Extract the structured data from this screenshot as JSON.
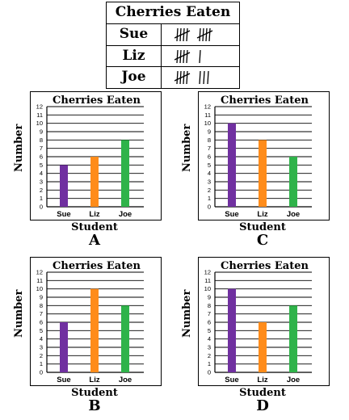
{
  "tally_table": {
    "title": "Cherries Eaten",
    "rows": [
      {
        "name": "Sue",
        "count": 10
      },
      {
        "name": "Liz",
        "count": 6
      },
      {
        "name": "Joe",
        "count": 8
      }
    ]
  },
  "colors": {
    "Sue": "#7030a0",
    "Liz": "#ff8c1a",
    "Joe": "#2fb34a"
  },
  "chart_data": [
    {
      "id": "A",
      "type": "bar",
      "title": "Cherries Eaten",
      "categories": [
        "Sue",
        "Liz",
        "Joe"
      ],
      "values": [
        5,
        6,
        8
      ],
      "xlabel": "Student",
      "ylabel": "Number",
      "ylim": [
        0,
        12
      ],
      "yticks": [
        0,
        1,
        2,
        3,
        4,
        5,
        6,
        7,
        8,
        9,
        10,
        11,
        12
      ],
      "grid": true,
      "letter": "A"
    },
    {
      "id": "C",
      "type": "bar",
      "title": "Cherries Eaten",
      "categories": [
        "Sue",
        "Liz",
        "Joe"
      ],
      "values": [
        10,
        8,
        6
      ],
      "xlabel": "Student",
      "ylabel": "Number",
      "ylim": [
        0,
        12
      ],
      "yticks": [
        0,
        1,
        2,
        3,
        4,
        5,
        6,
        7,
        8,
        9,
        10,
        11,
        12
      ],
      "grid": true,
      "letter": "C"
    },
    {
      "id": "B",
      "type": "bar",
      "title": "Cherries Eaten",
      "categories": [
        "Sue",
        "Liz",
        "Joe"
      ],
      "values": [
        6,
        10,
        8
      ],
      "xlabel": "Student",
      "ylabel": "Number",
      "ylim": [
        0,
        12
      ],
      "yticks": [
        0,
        1,
        2,
        3,
        4,
        5,
        6,
        7,
        8,
        9,
        10,
        11,
        12
      ],
      "grid": true,
      "letter": "B"
    },
    {
      "id": "D",
      "type": "bar",
      "title": "Cherries Eaten",
      "categories": [
        "Sue",
        "Liz",
        "Joe"
      ],
      "values": [
        10,
        6,
        8
      ],
      "xlabel": "Student",
      "ylabel": "Number",
      "ylim": [
        0,
        12
      ],
      "yticks": [
        0,
        1,
        2,
        3,
        4,
        5,
        6,
        7,
        8,
        9,
        10,
        11,
        12
      ],
      "grid": true,
      "letter": "D"
    }
  ]
}
